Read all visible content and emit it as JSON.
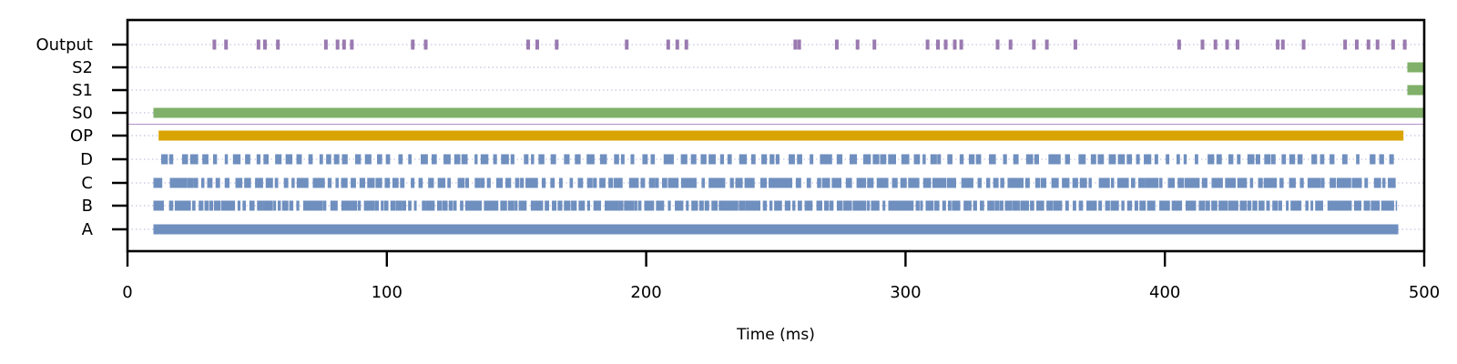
{
  "chart_data": {
    "type": "raster",
    "xlabel": "Time (ms)",
    "xlim": [
      0,
      500
    ],
    "x_ticks": [
      0,
      100,
      200,
      300,
      400,
      500
    ],
    "rows": [
      "A",
      "B",
      "C",
      "D",
      "OP",
      "S0",
      "S1",
      "S2",
      "Output"
    ],
    "grid": "horizontal dotted",
    "separator_between": [
      "OP",
      "S0"
    ],
    "colors": {
      "input": "#6f8fbf",
      "op": "#d9a400",
      "state": "#80b069",
      "output": "#9a7ab0",
      "separator": "#b291c9",
      "grid": "#b4b4dc"
    },
    "series": [
      {
        "row": "A",
        "color_key": "input",
        "pattern": "solid",
        "start": 10,
        "end": 490,
        "period": null,
        "duty": 1.0
      },
      {
        "row": "B",
        "color_key": "input",
        "pattern": "dense-spikes",
        "start": 10,
        "end": 489,
        "period": 2.2,
        "duty": 0.86
      },
      {
        "row": "C",
        "color_key": "input",
        "pattern": "spikes",
        "start": 10,
        "end": 489,
        "period": 3.0,
        "duty": 0.72
      },
      {
        "row": "D",
        "color_key": "input",
        "pattern": "sparse-spikes",
        "start": 13,
        "end": 489,
        "period": 3.9,
        "duty": 0.55
      },
      {
        "row": "OP",
        "color_key": "op",
        "pattern": "solid",
        "start": 12,
        "end": 492,
        "period": null,
        "duty": 1.0
      },
      {
        "row": "S0",
        "color_key": "state",
        "pattern": "solid",
        "start": 10,
        "end": 500,
        "period": null,
        "duty": 1.0
      },
      {
        "row": "S1",
        "color_key": "state",
        "pattern": "solid",
        "start": 493.5,
        "end": 500,
        "period": null,
        "duty": 1.0
      },
      {
        "row": "S2",
        "color_key": "state",
        "pattern": "solid",
        "start": 493.5,
        "end": 500,
        "period": null,
        "duty": 1.0
      }
    ],
    "output_spikes": [
      33.5,
      38,
      50.5,
      53,
      58,
      76.5,
      81,
      83.5,
      86.5,
      110,
      115,
      154.5,
      158,
      165.5,
      192.5,
      208.5,
      212,
      215.5,
      257.5,
      259,
      273.5,
      281.5,
      288,
      308.5,
      312.5,
      315.5,
      319,
      321.5,
      335.5,
      340.5,
      349.5,
      354.5,
      365.5,
      405.5,
      414.5,
      419.5,
      424,
      428,
      443.5,
      445.5,
      453.5,
      469.5,
      474,
      478.5,
      482,
      488,
      492.5
    ]
  }
}
